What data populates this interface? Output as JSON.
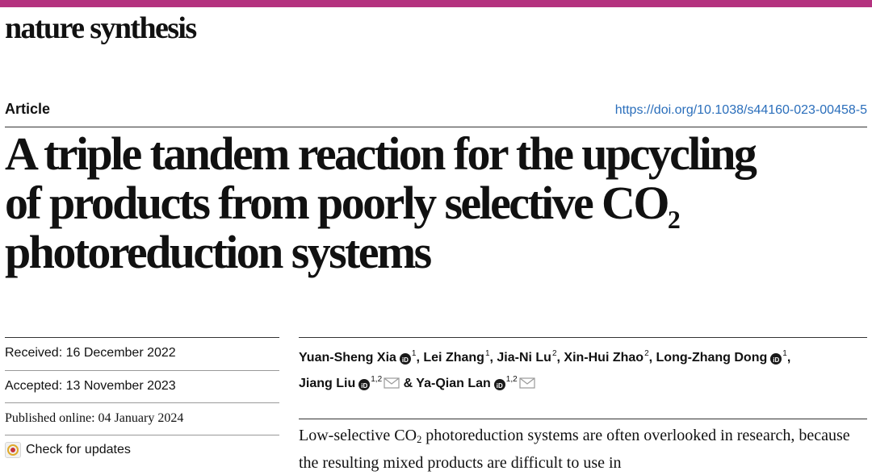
{
  "colors": {
    "brand_bar": "#b4327f",
    "link": "#2a6ebb",
    "orcid": "#1a1a1a"
  },
  "journal": {
    "name": "nature synthesis"
  },
  "article": {
    "type_label": "Article",
    "doi": "https://doi.org/10.1038/s44160-023-00458-5",
    "title_lines": [
      "A triple tandem reaction for the upcycling",
      "of products from poorly selective CO",
      "photoreduction systems"
    ],
    "title_subscript": "2"
  },
  "dates": {
    "received": "Received: 16 December 2022",
    "accepted": "Accepted: 13 November 2023",
    "published": "Published online: 04 January 2024"
  },
  "check_updates": {
    "label": "Check for updates",
    "icon": "check-updates-icon"
  },
  "authors": [
    {
      "name": "Yuan-Sheng Xia",
      "aff": "1",
      "orcid": true,
      "corresponding": false
    },
    {
      "name": "Lei Zhang",
      "aff": "1",
      "orcid": false,
      "corresponding": false
    },
    {
      "name": "Jia-Ni Lu",
      "aff": "2",
      "orcid": false,
      "corresponding": false
    },
    {
      "name": "Xin-Hui Zhao",
      "aff": "2",
      "orcid": false,
      "corresponding": false
    },
    {
      "name": "Long-Zhang Dong",
      "aff": "1",
      "orcid": true,
      "corresponding": false
    },
    {
      "name": "Jiang Liu",
      "aff": "1,2",
      "orcid": true,
      "corresponding": true
    },
    {
      "name": "Ya-Qian Lan",
      "aff": "1,2",
      "orcid": true,
      "corresponding": true
    }
  ],
  "author_separators": [
    ", ",
    ", ",
    ", ",
    ", ",
    ", ",
    " & ",
    ""
  ],
  "orcid_mark": "iD",
  "abstract": {
    "part1": "Low-selective CO",
    "sub": "2",
    "part2": " photoreduction systems are often overlooked in research, because the resulting mixed products are difficult to use in"
  }
}
